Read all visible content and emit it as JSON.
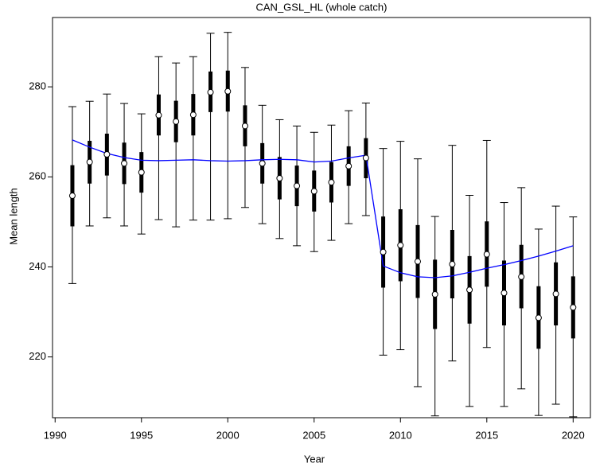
{
  "chart_data": {
    "type": "errorbar",
    "title": "CAN_GSL_HL (whole catch)",
    "xlabel": "Year",
    "ylabel": "Mean length",
    "x": [
      1991,
      1992,
      1993,
      1994,
      1995,
      1996,
      1997,
      1998,
      1999,
      2000,
      2001,
      2002,
      2003,
      2004,
      2005,
      2006,
      2007,
      2008,
      2009,
      2010,
      2011,
      2012,
      2013,
      2014,
      2015,
      2016,
      2017,
      2018,
      2019,
      2020
    ],
    "values": [
      255.8,
      263.3,
      265.0,
      263.0,
      261.0,
      273.7,
      272.3,
      273.8,
      278.8,
      279.0,
      271.3,
      263.0,
      259.7,
      258.0,
      256.8,
      258.8,
      262.4,
      264.2,
      243.3,
      244.8,
      241.2,
      233.9,
      240.6,
      234.9,
      242.8,
      234.2,
      237.8,
      228.7,
      234.0,
      231.0
    ],
    "inner_low": [
      249.0,
      258.5,
      260.3,
      258.4,
      256.5,
      269.2,
      267.7,
      269.2,
      274.4,
      274.5,
      266.8,
      258.5,
      255.0,
      253.5,
      252.3,
      254.3,
      258.0,
      259.7,
      235.4,
      236.8,
      233.1,
      226.2,
      233.0,
      227.4,
      235.6,
      227.0,
      230.8,
      221.8,
      227.0,
      224.1
    ],
    "inner_high": [
      262.6,
      268.0,
      269.6,
      267.6,
      265.5,
      278.3,
      276.9,
      278.4,
      283.4,
      283.6,
      275.9,
      267.5,
      264.4,
      262.5,
      261.4,
      263.3,
      266.8,
      268.6,
      251.2,
      252.8,
      249.3,
      241.6,
      248.2,
      242.4,
      250.1,
      241.4,
      244.9,
      235.7,
      241.0,
      237.9
    ],
    "outer_low": [
      236.3,
      249.1,
      250.9,
      249.1,
      247.3,
      250.5,
      248.9,
      250.4,
      250.4,
      250.7,
      253.2,
      249.6,
      246.3,
      244.7,
      243.4,
      245.9,
      249.6,
      251.4,
      220.4,
      221.6,
      213.4,
      206.9,
      219.1,
      209.0,
      222.1,
      209.0,
      212.9,
      207.0,
      209.5,
      206.7
    ],
    "outer_high": [
      275.6,
      276.8,
      278.4,
      276.3,
      274.0,
      286.7,
      285.3,
      286.7,
      291.9,
      292.1,
      284.3,
      275.9,
      272.7,
      271.3,
      269.9,
      271.5,
      274.7,
      276.4,
      266.3,
      267.9,
      264.0,
      251.2,
      267.0,
      255.9,
      268.1,
      254.3,
      257.6,
      248.4,
      253.5,
      251.1
    ],
    "fit": [
      268.2,
      266.6,
      265.2,
      264.3,
      263.7,
      263.6,
      263.7,
      263.8,
      263.6,
      263.5,
      263.6,
      263.8,
      263.9,
      263.8,
      263.3,
      263.5,
      264.2,
      264.8,
      240.2,
      238.7,
      237.8,
      237.6,
      238.0,
      238.8,
      239.7,
      240.5,
      241.4,
      242.4,
      243.5,
      244.7
    ],
    "color": "#000000",
    "fit_color": "#0000ff",
    "point_color": "#ffffff",
    "xlim": [
      1989.85,
      2021.0
    ],
    "ylim": [
      206.5,
      295.4
    ],
    "xticks": [
      1990,
      1995,
      2000,
      2005,
      2010,
      2015,
      2020
    ],
    "yticks": [
      220,
      240,
      260,
      280
    ],
    "grid": false
  }
}
